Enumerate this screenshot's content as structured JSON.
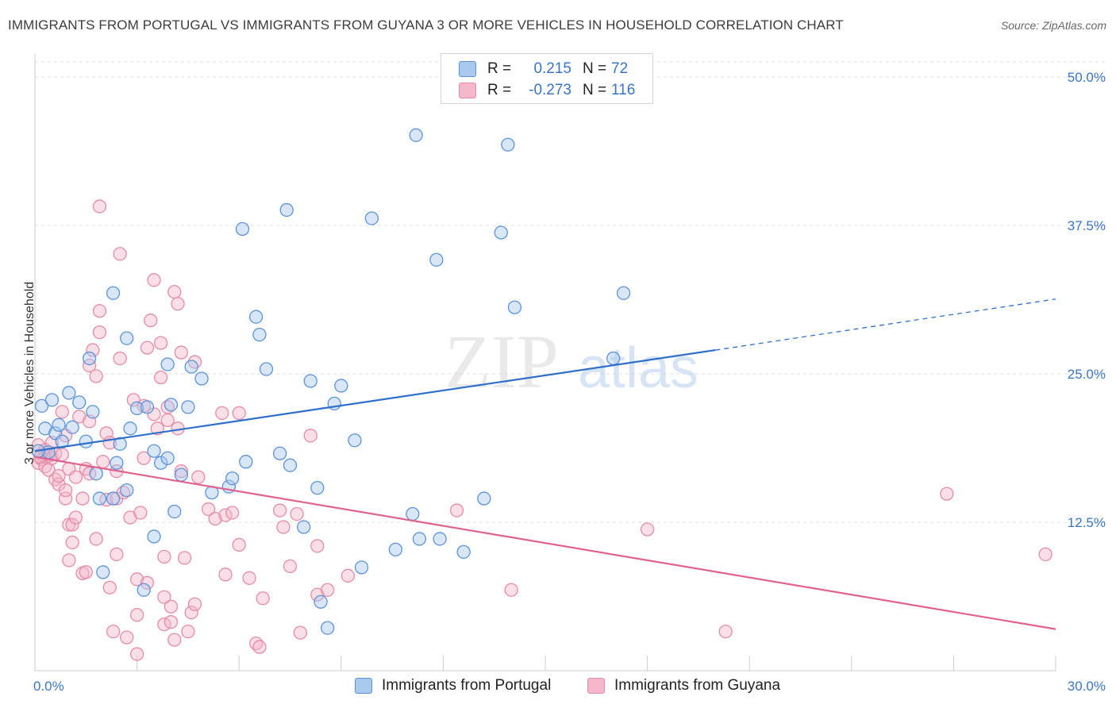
{
  "title": "IMMIGRANTS FROM PORTUGAL VS IMMIGRANTS FROM GUYANA 3 OR MORE VEHICLES IN HOUSEHOLD CORRELATION CHART",
  "source": "Source: ZipAtlas.com",
  "watermark": {
    "zip": "ZIP",
    "atlas": "atlas"
  },
  "colors": {
    "portugal_fill": "#a9c8ee",
    "portugal_stroke": "#5b93d8",
    "portugal_line": "#2f6fcc",
    "guyana_fill": "#f5b7ca",
    "guyana_stroke": "#e58aa8",
    "guyana_line": "#e0628f",
    "tick_label": "#3a75c4",
    "grid": "#dddddd"
  },
  "legend": {
    "rows": [
      {
        "r_label": "R =",
        "r_value": "0.215",
        "n_label": "N =",
        "n_value": "72"
      },
      {
        "r_label": "R =",
        "r_value": "-0.273",
        "n_label": "N =",
        "n_value": "116"
      }
    ]
  },
  "chart_data": {
    "type": "scatter",
    "xlabel": "",
    "ylabel": "3 or more Vehicles in Household",
    "xlim": [
      0,
      30
    ],
    "ylim": [
      0,
      50
    ],
    "x_tick_labels": [
      "0.0%",
      "30.0%"
    ],
    "y_ticks": [
      {
        "value": 12.5,
        "label": "12.5%"
      },
      {
        "value": 25.0,
        "label": "25.0%"
      },
      {
        "value": 37.5,
        "label": "37.5%"
      },
      {
        "value": 50.0,
        "label": "50.0%"
      }
    ],
    "grid": true,
    "legend_position": "top-center",
    "series": [
      {
        "name": "Immigrants from Portugal",
        "r": 0.215,
        "n": 72,
        "trend": {
          "x0": 0,
          "y0": 18.5,
          "x1": 20,
          "y1": 27.0,
          "dash_to_x": 30,
          "dash_to_y": 31.3
        },
        "points": [
          [
            0.2,
            22.3
          ],
          [
            0.3,
            20.4
          ],
          [
            0.4,
            18.4
          ],
          [
            0.5,
            22.8
          ],
          [
            0.6,
            20.0
          ],
          [
            0.7,
            20.7
          ],
          [
            0.8,
            19.3
          ],
          [
            1.0,
            23.4
          ],
          [
            1.1,
            20.5
          ],
          [
            1.3,
            22.6
          ],
          [
            1.5,
            19.3
          ],
          [
            1.6,
            26.3
          ],
          [
            1.7,
            21.8
          ],
          [
            1.8,
            16.6
          ],
          [
            1.9,
            14.5
          ],
          [
            2.0,
            8.3
          ],
          [
            2.3,
            14.5
          ],
          [
            2.3,
            31.8
          ],
          [
            2.4,
            17.5
          ],
          [
            2.5,
            19.1
          ],
          [
            2.7,
            15.2
          ],
          [
            2.7,
            28.0
          ],
          [
            2.8,
            20.4
          ],
          [
            3.0,
            22.1
          ],
          [
            3.2,
            6.8
          ],
          [
            3.3,
            22.2
          ],
          [
            3.5,
            11.3
          ],
          [
            3.5,
            18.5
          ],
          [
            3.7,
            17.5
          ],
          [
            3.9,
            25.8
          ],
          [
            3.9,
            17.9
          ],
          [
            4.0,
            22.4
          ],
          [
            4.1,
            13.4
          ],
          [
            4.3,
            16.5
          ],
          [
            4.5,
            22.2
          ],
          [
            4.6,
            25.6
          ],
          [
            4.9,
            24.6
          ],
          [
            5.2,
            15.0
          ],
          [
            5.7,
            15.5
          ],
          [
            5.8,
            16.2
          ],
          [
            6.1,
            37.2
          ],
          [
            6.2,
            17.6
          ],
          [
            6.5,
            29.8
          ],
          [
            6.6,
            28.3
          ],
          [
            6.8,
            25.4
          ],
          [
            7.2,
            18.3
          ],
          [
            7.4,
            38.8
          ],
          [
            7.5,
            17.3
          ],
          [
            7.9,
            12.1
          ],
          [
            8.1,
            24.4
          ],
          [
            8.3,
            15.4
          ],
          [
            8.4,
            5.8
          ],
          [
            8.6,
            3.6
          ],
          [
            8.8,
            22.5
          ],
          [
            9.0,
            24.0
          ],
          [
            9.4,
            19.4
          ],
          [
            9.6,
            8.7
          ],
          [
            9.9,
            38.1
          ],
          [
            10.6,
            10.2
          ],
          [
            11.1,
            13.2
          ],
          [
            11.2,
            45.1
          ],
          [
            11.3,
            11.1
          ],
          [
            11.8,
            34.6
          ],
          [
            11.9,
            11.1
          ],
          [
            12.6,
            10.0
          ],
          [
            13.2,
            14.5
          ],
          [
            13.7,
            36.9
          ],
          [
            13.9,
            44.3
          ],
          [
            14.1,
            30.6
          ],
          [
            17.0,
            26.3
          ],
          [
            17.3,
            31.8
          ],
          [
            0.1,
            18.5
          ]
        ]
      },
      {
        "name": "Immigrants from Guyana",
        "r": -0.273,
        "n": 116,
        "trend": {
          "x0": 0,
          "y0": 18.0,
          "x1": 30,
          "y1": 3.5
        },
        "points": [
          [
            0.1,
            17.5
          ],
          [
            0.1,
            19.0
          ],
          [
            0.2,
            18.2
          ],
          [
            0.2,
            17.8
          ],
          [
            0.3,
            18.0
          ],
          [
            0.3,
            17.2
          ],
          [
            0.3,
            18.6
          ],
          [
            0.4,
            16.9
          ],
          [
            0.4,
            18.1
          ],
          [
            0.5,
            17.9
          ],
          [
            0.5,
            19.2
          ],
          [
            0.6,
            18.3
          ],
          [
            0.6,
            16.1
          ],
          [
            0.7,
            15.7
          ],
          [
            0.7,
            16.4
          ],
          [
            0.8,
            21.8
          ],
          [
            0.8,
            18.2
          ],
          [
            0.9,
            14.5
          ],
          [
            0.9,
            15.2
          ],
          [
            0.9,
            19.8
          ],
          [
            1.0,
            17.0
          ],
          [
            1.0,
            9.3
          ],
          [
            1.0,
            12.3
          ],
          [
            1.1,
            12.3
          ],
          [
            1.1,
            10.8
          ],
          [
            1.2,
            16.3
          ],
          [
            1.2,
            12.9
          ],
          [
            1.3,
            21.4
          ],
          [
            1.4,
            14.5
          ],
          [
            1.4,
            8.2
          ],
          [
            1.5,
            8.3
          ],
          [
            1.5,
            17.0
          ],
          [
            1.6,
            21.0
          ],
          [
            1.6,
            25.7
          ],
          [
            1.6,
            16.6
          ],
          [
            1.7,
            27.0
          ],
          [
            1.8,
            11.1
          ],
          [
            1.8,
            24.8
          ],
          [
            1.9,
            28.5
          ],
          [
            1.9,
            30.3
          ],
          [
            1.9,
            39.1
          ],
          [
            2.0,
            17.6
          ],
          [
            2.1,
            14.4
          ],
          [
            2.1,
            20.0
          ],
          [
            2.2,
            19.2
          ],
          [
            2.2,
            7.0
          ],
          [
            2.3,
            3.3
          ],
          [
            2.4,
            14.5
          ],
          [
            2.4,
            9.8
          ],
          [
            2.4,
            16.8
          ],
          [
            2.5,
            26.3
          ],
          [
            2.5,
            35.1
          ],
          [
            2.6,
            15.0
          ],
          [
            2.7,
            2.8
          ],
          [
            2.8,
            12.9
          ],
          [
            2.9,
            22.8
          ],
          [
            3.0,
            1.4
          ],
          [
            3.0,
            4.7
          ],
          [
            3.0,
            7.7
          ],
          [
            3.1,
            13.3
          ],
          [
            3.2,
            17.9
          ],
          [
            3.2,
            22.3
          ],
          [
            3.3,
            27.2
          ],
          [
            3.3,
            7.4
          ],
          [
            3.4,
            29.5
          ],
          [
            3.5,
            32.9
          ],
          [
            3.5,
            21.6
          ],
          [
            3.6,
            20.4
          ],
          [
            3.7,
            24.7
          ],
          [
            3.7,
            27.6
          ],
          [
            3.8,
            9.6
          ],
          [
            3.8,
            6.2
          ],
          [
            3.8,
            3.9
          ],
          [
            3.9,
            22.2
          ],
          [
            3.9,
            21.1
          ],
          [
            4.0,
            4.1
          ],
          [
            4.0,
            5.4
          ],
          [
            4.1,
            31.9
          ],
          [
            4.1,
            2.6
          ],
          [
            4.2,
            30.9
          ],
          [
            4.2,
            20.4
          ],
          [
            4.3,
            16.8
          ],
          [
            4.3,
            26.8
          ],
          [
            4.4,
            9.5
          ],
          [
            4.5,
            3.3
          ],
          [
            4.6,
            4.9
          ],
          [
            4.7,
            5.6
          ],
          [
            4.7,
            26.0
          ],
          [
            4.8,
            16.3
          ],
          [
            5.1,
            13.6
          ],
          [
            5.3,
            12.8
          ],
          [
            5.5,
            21.7
          ],
          [
            5.6,
            8.1
          ],
          [
            5.6,
            13.1
          ],
          [
            5.8,
            13.3
          ],
          [
            6.0,
            10.6
          ],
          [
            6.0,
            21.7
          ],
          [
            6.3,
            7.8
          ],
          [
            6.5,
            2.3
          ],
          [
            6.6,
            2.0
          ],
          [
            6.7,
            6.1
          ],
          [
            7.2,
            13.5
          ],
          [
            7.3,
            12.1
          ],
          [
            7.5,
            8.8
          ],
          [
            7.7,
            13.2
          ],
          [
            7.8,
            3.2
          ],
          [
            8.1,
            19.8
          ],
          [
            8.3,
            10.5
          ],
          [
            8.3,
            6.4
          ],
          [
            8.6,
            6.8
          ],
          [
            9.2,
            8.0
          ],
          [
            12.4,
            13.5
          ],
          [
            14.0,
            6.8
          ],
          [
            18.0,
            11.9
          ],
          [
            20.3,
            3.3
          ],
          [
            26.8,
            14.9
          ],
          [
            29.7,
            9.8
          ],
          [
            0.15,
            18.0
          ]
        ]
      }
    ]
  }
}
